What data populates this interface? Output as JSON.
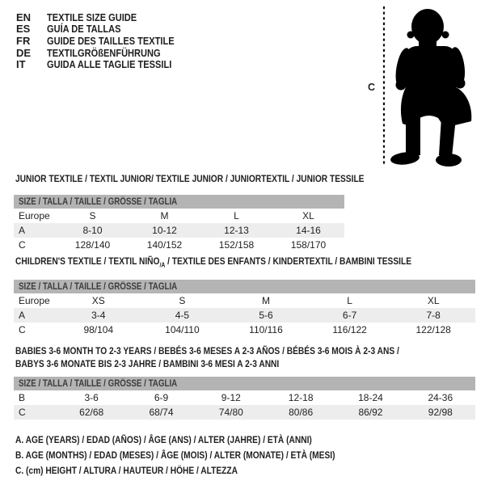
{
  "header": {
    "languages": [
      {
        "code": "EN",
        "label": "TEXTILE SIZE GUIDE"
      },
      {
        "code": "ES",
        "label": "GUÍA DE TALLAS"
      },
      {
        "code": "FR",
        "label": "GUIDE DES TAILLES TEXTILE"
      },
      {
        "code": "DE",
        "label": "TEXTILGRÖßENFÜHRUNG"
      },
      {
        "code": "IT",
        "label": "GUIDA ALLE TAGLIE TESSILI"
      }
    ]
  },
  "figure": {
    "icon": "toddler-silhouette",
    "height_label": "C"
  },
  "colors": {
    "size_header_bar": "#b4b4b4",
    "shaded_row": "#ededed",
    "text": "#1f1f1f"
  },
  "sections": [
    {
      "title": "JUNIOR TEXTILE / TEXTIL JUNIOR/ TEXTILE JUNIOR / JUNIORTEXTIL / JUNIOR TESSILE",
      "size_header": "SIZE / TALLA / TAILLE / GRÖSSE / TAGLIA",
      "rows": [
        {
          "label": "Europe",
          "values": [
            "S",
            "M",
            "L",
            "XL"
          ]
        },
        {
          "label": "A",
          "values": [
            "8-10",
            "10-12",
            "12-13",
            "14-16"
          ]
        },
        {
          "label": "C",
          "values": [
            "128/140",
            "140/152",
            "152/158",
            "158/170"
          ]
        }
      ]
    },
    {
      "title_parts": [
        "CHILDREN'S TEXTILE / TEXTIL NIÑO",
        {
          "sub": "/A"
        },
        " / TEXTILE DES ENFANTS / KINDERTEXTIL / BAMBINI TESSILE"
      ],
      "size_header": "SIZE / TALLA / TAILLE / GRÖSSE / TAGLIA",
      "rows": [
        {
          "label": "Europe",
          "values": [
            "XS",
            "S",
            "M",
            "L",
            "XL"
          ]
        },
        {
          "label": "A",
          "values": [
            "3-4",
            "4-5",
            "5-6",
            "6-7",
            "7-8"
          ]
        },
        {
          "label": "C",
          "values": [
            "98/104",
            "104/110",
            "110/116",
            "116/122",
            "122/128"
          ]
        }
      ]
    },
    {
      "title_lines": [
        "BABIES 3-6 MONTH TO 2-3 YEARS / BEBÉS 3-6 MESES A 2-3 AÑOS / BÉBÉS 3-6 MOIS À 2-3 ANS /",
        "BABYS 3-6 MONATE BIS 2-3 JAHRE / BAMBINI 3-6 MESI A 2-3 ANNI"
      ],
      "size_header": "SIZE / TALLA / TAILLE / GRÖSSE / TAGLIA",
      "rows": [
        {
          "label": "B",
          "values": [
            "3-6",
            "6-9",
            "9-12",
            "12-18",
            "18-24",
            "24-36"
          ]
        },
        {
          "label": "C",
          "values": [
            "62/68",
            "68/74",
            "74/80",
            "80/86",
            "86/92",
            "92/98"
          ]
        }
      ]
    }
  ],
  "footnotes": [
    "A. AGE (YEARS) / EDAD (AÑOS) / ÂGE (ANS) / ALTER (JAHRE) / ETÀ (ANNI)",
    "B. AGE (MONTHS) / EDAD (MESES) / ÂGE (MOIS) / ALTER (MONATE) / ETÀ (MESI)",
    "C. (cm) HEIGHT / ALTURA / HAUTEUR / HÖHE / ALTEZZA"
  ]
}
